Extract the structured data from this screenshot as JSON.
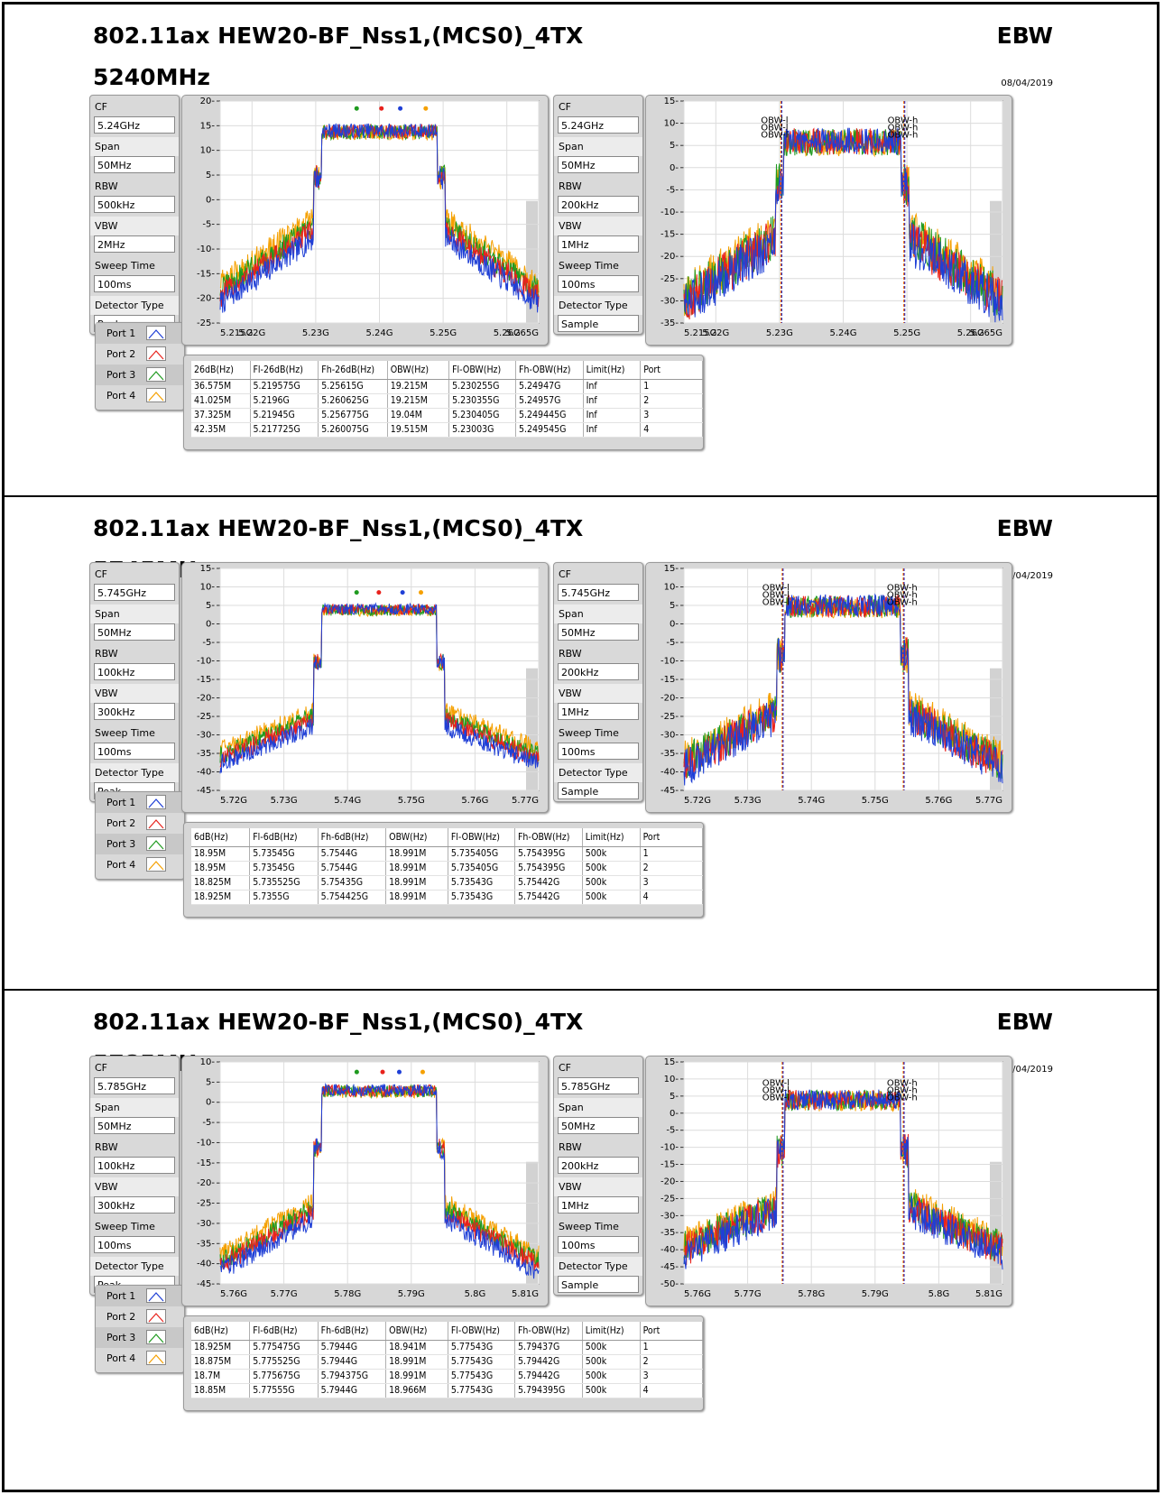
{
  "sections": [
    {
      "title": "802.11ax HEW20-BF_Nss1,(MCS0)_4TX",
      "label": "EBW",
      "frequency": "5240MHz",
      "date": "08/04/2019",
      "params_left": [
        {
          "label": "CF",
          "value": "5.24GHz"
        },
        {
          "label": "Span",
          "value": "50MHz"
        },
        {
          "label": "RBW",
          "value": "500kHz"
        },
        {
          "label": "VBW",
          "value": "2MHz"
        },
        {
          "label": "Sweep Time",
          "value": "100ms"
        },
        {
          "label": "Detector Type",
          "value": "Peak"
        }
      ],
      "params_right": [
        {
          "label": "CF",
          "value": "5.24GHz"
        },
        {
          "label": "Span",
          "value": "50MHz"
        },
        {
          "label": "RBW",
          "value": "200kHz"
        },
        {
          "label": "VBW",
          "value": "1MHz"
        },
        {
          "label": "Sweep Time",
          "value": "100ms"
        },
        {
          "label": "Detector Type",
          "value": "Sample"
        }
      ],
      "legend": [
        "Port 1",
        "Port 2",
        "Port 3",
        "Port 4"
      ],
      "table": {
        "headers": [
          "26dB(Hz)",
          "Fl-26dB(Hz)",
          "Fh-26dB(Hz)",
          "OBW(Hz)",
          "Fl-OBW(Hz)",
          "Fh-OBW(Hz)",
          "Limit(Hz)",
          "Port"
        ],
        "rows": [
          [
            "36.575M",
            "5.219575G",
            "5.25615G",
            "19.215M",
            "5.230255G",
            "5.24947G",
            "Inf",
            "1"
          ],
          [
            "41.025M",
            "5.2196G",
            "5.260625G",
            "19.215M",
            "5.230355G",
            "5.24957G",
            "Inf",
            "2"
          ],
          [
            "37.325M",
            "5.21945G",
            "5.256775G",
            "19.04M",
            "5.230405G",
            "5.249445G",
            "Inf",
            "3"
          ],
          [
            "42.35M",
            "5.217725G",
            "5.260075G",
            "19.515M",
            "5.23003G",
            "5.249545G",
            "Inf",
            "4"
          ]
        ]
      }
    },
    {
      "title": "802.11ax HEW20-BF_Nss1,(MCS0)_4TX",
      "label": "EBW",
      "frequency": "5745MHz",
      "date": "08/04/2019",
      "params_left": [
        {
          "label": "CF",
          "value": "5.745GHz"
        },
        {
          "label": "Span",
          "value": "50MHz"
        },
        {
          "label": "RBW",
          "value": "100kHz"
        },
        {
          "label": "VBW",
          "value": "300kHz"
        },
        {
          "label": "Sweep Time",
          "value": "100ms"
        },
        {
          "label": "Detector Type",
          "value": "Peak"
        }
      ],
      "params_right": [
        {
          "label": "CF",
          "value": "5.745GHz"
        },
        {
          "label": "Span",
          "value": "50MHz"
        },
        {
          "label": "RBW",
          "value": "200kHz"
        },
        {
          "label": "VBW",
          "value": "1MHz"
        },
        {
          "label": "Sweep Time",
          "value": "100ms"
        },
        {
          "label": "Detector Type",
          "value": "Sample"
        }
      ],
      "legend": [
        "Port 1",
        "Port 2",
        "Port 3",
        "Port 4"
      ],
      "table": {
        "headers": [
          "6dB(Hz)",
          "Fl-6dB(Hz)",
          "Fh-6dB(Hz)",
          "OBW(Hz)",
          "Fl-OBW(Hz)",
          "Fh-OBW(Hz)",
          "Limit(Hz)",
          "Port"
        ],
        "rows": [
          [
            "18.95M",
            "5.73545G",
            "5.7544G",
            "18.991M",
            "5.735405G",
            "5.754395G",
            "500k",
            "1"
          ],
          [
            "18.95M",
            "5.73545G",
            "5.7544G",
            "18.991M",
            "5.735405G",
            "5.754395G",
            "500k",
            "2"
          ],
          [
            "18.825M",
            "5.735525G",
            "5.75435G",
            "18.991M",
            "5.73543G",
            "5.75442G",
            "500k",
            "3"
          ],
          [
            "18.925M",
            "5.7355G",
            "5.754425G",
            "18.991M",
            "5.73543G",
            "5.75442G",
            "500k",
            "4"
          ]
        ]
      }
    },
    {
      "title": "802.11ax HEW20-BF_Nss1,(MCS0)_4TX",
      "label": "EBW",
      "frequency": "5785MHz",
      "date": "08/04/2019",
      "params_left": [
        {
          "label": "CF",
          "value": "5.785GHz"
        },
        {
          "label": "Span",
          "value": "50MHz"
        },
        {
          "label": "RBW",
          "value": "100kHz"
        },
        {
          "label": "VBW",
          "value": "300kHz"
        },
        {
          "label": "Sweep Time",
          "value": "100ms"
        },
        {
          "label": "Detector Type",
          "value": "Peak"
        }
      ],
      "params_right": [
        {
          "label": "CF",
          "value": "5.785GHz"
        },
        {
          "label": "Span",
          "value": "50MHz"
        },
        {
          "label": "RBW",
          "value": "200kHz"
        },
        {
          "label": "VBW",
          "value": "1MHz"
        },
        {
          "label": "Sweep Time",
          "value": "100ms"
        },
        {
          "label": "Detector Type",
          "value": "Sample"
        }
      ],
      "legend": [
        "Port 1",
        "Port 2",
        "Port 3",
        "Port 4"
      ],
      "table": {
        "headers": [
          "6dB(Hz)",
          "Fl-6dB(Hz)",
          "Fh-6dB(Hz)",
          "OBW(Hz)",
          "Fl-OBW(Hz)",
          "Fh-OBW(Hz)",
          "Limit(Hz)",
          "Port"
        ],
        "rows": [
          [
            "18.925M",
            "5.775475G",
            "5.7944G",
            "18.941M",
            "5.77543G",
            "5.79437G",
            "500k",
            "1"
          ],
          [
            "18.875M",
            "5.775525G",
            "5.7944G",
            "18.991M",
            "5.77543G",
            "5.79442G",
            "500k",
            "2"
          ],
          [
            "18.7M",
            "5.775675G",
            "5.794375G",
            "18.991M",
            "5.77543G",
            "5.79442G",
            "500k",
            "3"
          ],
          [
            "18.85M",
            "5.77555G",
            "5.7944G",
            "18.966M",
            "5.77543G",
            "5.794395G",
            "500k",
            "4"
          ]
        ]
      }
    }
  ],
  "colors": {
    "port1": "#1f3fd6",
    "port2": "#e8221c",
    "port3": "#1f9a1f",
    "port4": "#f5a000"
  },
  "chart_data": [
    {
      "type": "line",
      "section": 0,
      "panel": "left",
      "xlim": [
        5.215,
        5.265
      ],
      "ylim": [
        -25,
        20
      ],
      "x_ticks": [
        "5.215G",
        "5.22G",
        "5.23G",
        "5.24G",
        "5.25G",
        "5.26G",
        "5.265G"
      ],
      "x_tick_values": [
        5.215,
        5.22,
        5.23,
        5.24,
        5.25,
        5.26,
        5.265
      ],
      "y_ticks": [
        20,
        15,
        10,
        5,
        0,
        -5,
        -10,
        -15,
        -20,
        -25
      ],
      "edges": [
        5.2305,
        5.2495
      ],
      "in_band_level": 14,
      "edge_level": -5,
      "floor_level": -19,
      "noise": 2.5,
      "markers": true,
      "series": [
        {
          "name": "Port 1"
        },
        {
          "name": "Port 2"
        },
        {
          "name": "Port 3"
        },
        {
          "name": "Port 4"
        }
      ]
    },
    {
      "type": "line",
      "section": 0,
      "panel": "right",
      "xlim": [
        5.215,
        5.265
      ],
      "ylim": [
        -35,
        15
      ],
      "x_ticks": [
        "5.215G",
        "5.22G",
        "5.23G",
        "5.24G",
        "5.25G",
        "5.26G",
        "5.265G"
      ],
      "x_tick_values": [
        5.215,
        5.22,
        5.23,
        5.24,
        5.25,
        5.26,
        5.265
      ],
      "y_ticks": [
        15,
        10,
        5,
        0,
        -5,
        -10,
        -15,
        -20,
        -25,
        -30,
        -35
      ],
      "edges": [
        5.2302,
        5.2495
      ],
      "in_band_level": 6,
      "edge_level": -14,
      "floor_level": -29,
      "noise": 5,
      "markers": false,
      "annotations": [
        "OBW-l",
        "OBW-h"
      ],
      "series": [
        {
          "name": "Port 1"
        },
        {
          "name": "Port 2"
        },
        {
          "name": "Port 3"
        },
        {
          "name": "Port 4"
        }
      ]
    },
    {
      "type": "line",
      "section": 1,
      "panel": "left",
      "xlim": [
        5.72,
        5.77
      ],
      "ylim": [
        -45,
        15
      ],
      "x_ticks": [
        "5.72G",
        "5.73G",
        "5.74G",
        "5.75G",
        "5.76G",
        "5.77G"
      ],
      "x_tick_values": [
        5.72,
        5.73,
        5.74,
        5.75,
        5.76,
        5.77
      ],
      "y_ticks": [
        15,
        10,
        5,
        0,
        -5,
        -10,
        -15,
        -20,
        -25,
        -30,
        -35,
        -40,
        -45
      ],
      "edges": [
        5.7355,
        5.7544
      ],
      "in_band_level": 4,
      "edge_level": -25,
      "floor_level": -36,
      "noise": 2.5,
      "markers": true,
      "series": [
        {
          "name": "Port 1"
        },
        {
          "name": "Port 2"
        },
        {
          "name": "Port 3"
        },
        {
          "name": "Port 4"
        }
      ]
    },
    {
      "type": "line",
      "section": 1,
      "panel": "right",
      "xlim": [
        5.72,
        5.77
      ],
      "ylim": [
        -45,
        15
      ],
      "x_ticks": [
        "5.72G",
        "5.73G",
        "5.74G",
        "5.75G",
        "5.76G",
        "5.77G"
      ],
      "x_tick_values": [
        5.72,
        5.73,
        5.74,
        5.75,
        5.76,
        5.77
      ],
      "y_ticks": [
        15,
        10,
        5,
        0,
        -5,
        -10,
        -15,
        -20,
        -25,
        -30,
        -35,
        -40,
        -45
      ],
      "edges": [
        5.7354,
        5.7544
      ],
      "in_band_level": 5,
      "edge_level": -22,
      "floor_level": -37,
      "noise": 5,
      "markers": false,
      "annotations": [
        "OBW-l",
        "OBW-h"
      ],
      "series": [
        {
          "name": "Port 1"
        },
        {
          "name": "Port 2"
        },
        {
          "name": "Port 3"
        },
        {
          "name": "Port 4"
        }
      ]
    },
    {
      "type": "line",
      "section": 2,
      "panel": "left",
      "xlim": [
        5.76,
        5.81
      ],
      "ylim": [
        -45,
        10
      ],
      "x_ticks": [
        "5.76G",
        "5.77G",
        "5.78G",
        "5.79G",
        "5.8G",
        "5.81G"
      ],
      "x_tick_values": [
        5.76,
        5.77,
        5.78,
        5.79,
        5.8,
        5.81
      ],
      "y_ticks": [
        10,
        5,
        0,
        -5,
        -10,
        -15,
        -20,
        -25,
        -30,
        -35,
        -40,
        -45
      ],
      "edges": [
        5.7755,
        5.7944
      ],
      "in_band_level": 3,
      "edge_level": -26,
      "floor_level": -40,
      "noise": 2.5,
      "markers": true,
      "series": [
        {
          "name": "Port 1"
        },
        {
          "name": "Port 2"
        },
        {
          "name": "Port 3"
        },
        {
          "name": "Port 4"
        }
      ]
    },
    {
      "type": "line",
      "section": 2,
      "panel": "right",
      "xlim": [
        5.76,
        5.81
      ],
      "ylim": [
        -50,
        15
      ],
      "x_ticks": [
        "5.76G",
        "5.77G",
        "5.78G",
        "5.79G",
        "5.8G",
        "5.81G"
      ],
      "x_tick_values": [
        5.76,
        5.77,
        5.78,
        5.79,
        5.8,
        5.81
      ],
      "y_ticks": [
        15,
        10,
        5,
        0,
        -5,
        -10,
        -15,
        -20,
        -25,
        -30,
        -35,
        -40,
        -45,
        -50
      ],
      "edges": [
        5.7754,
        5.7944
      ],
      "in_band_level": 4,
      "edge_level": -26,
      "floor_level": -39,
      "noise": 5,
      "markers": false,
      "annotations": [
        "OBW-l",
        "OBW-h"
      ],
      "series": [
        {
          "name": "Port 1"
        },
        {
          "name": "Port 2"
        },
        {
          "name": "Port 3"
        },
        {
          "name": "Port 4"
        }
      ]
    }
  ]
}
